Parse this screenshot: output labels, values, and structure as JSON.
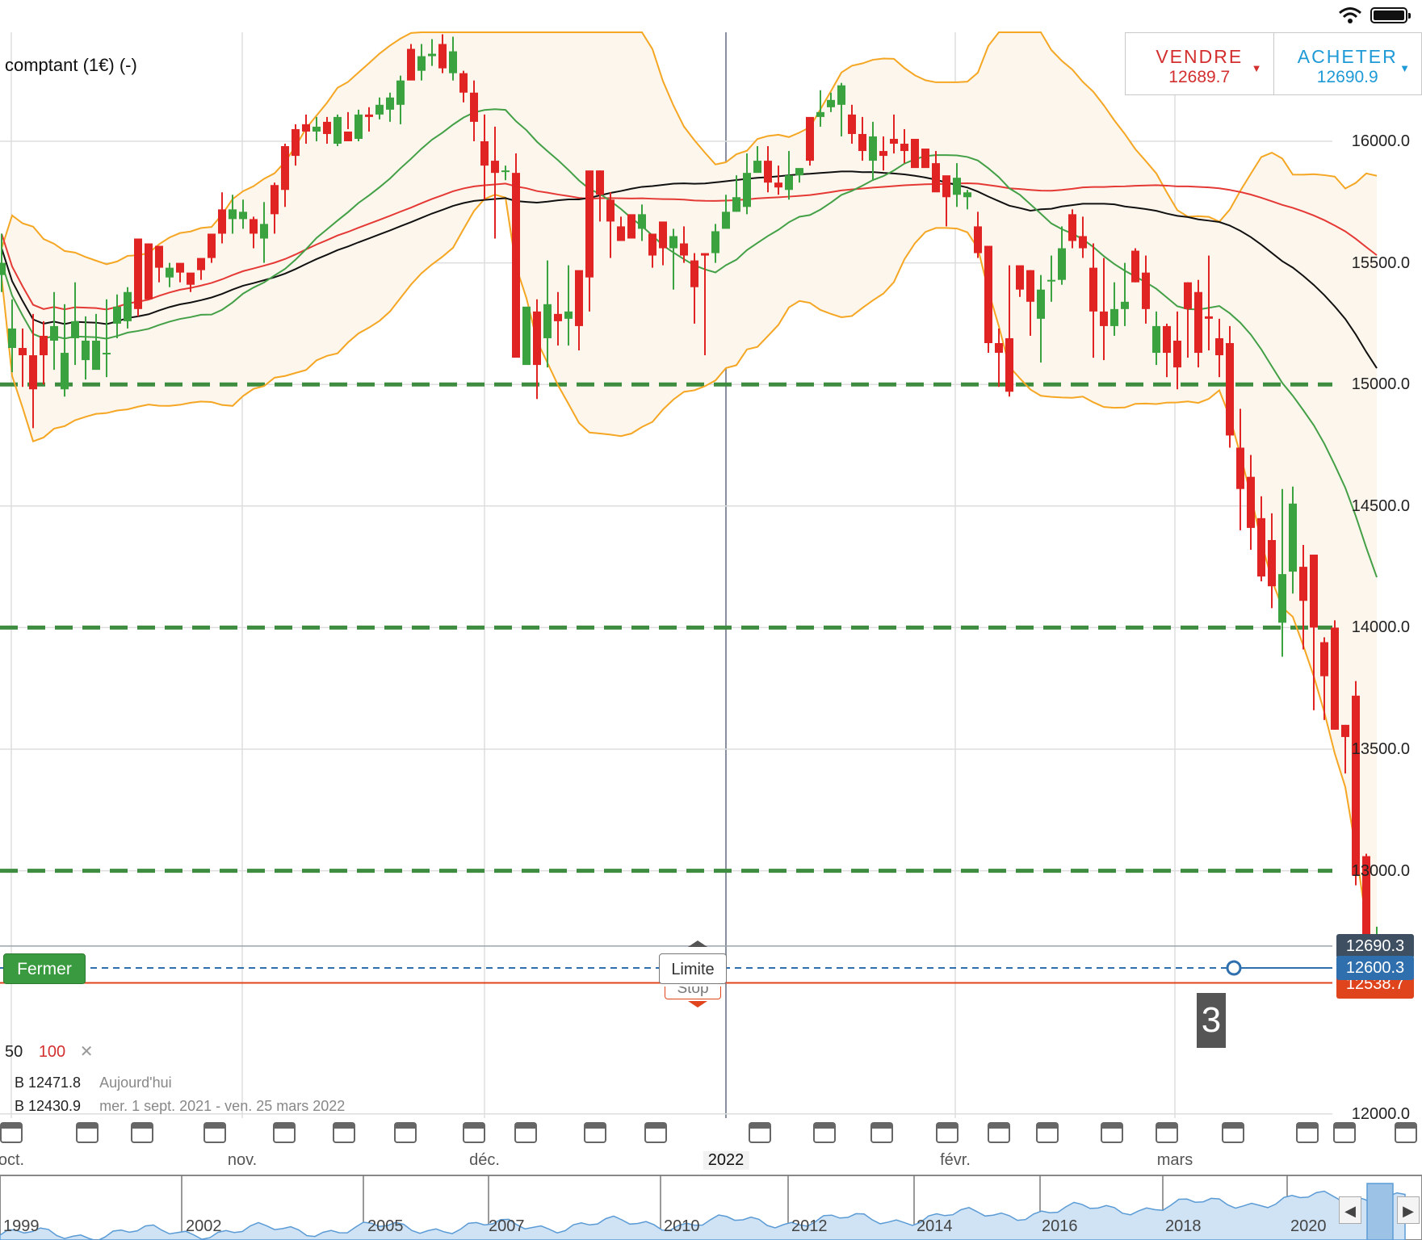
{
  "instrument": {
    "title": "comptant (1€) (-)"
  },
  "trade": {
    "sell_label": "VENDRE",
    "sell_price": "12689.7",
    "buy_label": "ACHETER",
    "buy_price": "12690.9",
    "sell_color": "#d32f2f",
    "buy_color": "#1e9ad6"
  },
  "buttons": {
    "close_label": "Fermer",
    "limit_label": "Limite",
    "stop_label": "Stop"
  },
  "price_tags": {
    "high": "12690.3",
    "current": "12600.3",
    "stop": "12538.7"
  },
  "countdown": "3",
  "indicators": {
    "ma50_label": "50",
    "ma100_label": "100",
    "line1_label": "B 12471.8",
    "line1_desc": "Aujourd'hui",
    "line2_label": "B 12430.9",
    "line2_desc": "mer. 1 sept. 2021 - ven. 25 mars 2022"
  },
  "date_axis": {
    "labels": [
      "oct.",
      "nov.",
      "déc.",
      "2022",
      "févr.",
      "mars"
    ],
    "year_labels": [
      "1999",
      "2002",
      "2005",
      "2007",
      "2010",
      "2012",
      "2014",
      "2016",
      "2018",
      "2020"
    ]
  },
  "icons": [
    "wifi-icon",
    "battery-icon",
    "calendar-icon",
    "chevron-left-icon",
    "chevron-right-icon"
  ],
  "chart_data": {
    "type": "candlestick",
    "title": "",
    "y_axis": {
      "ticks": [
        16000,
        15500,
        15000,
        14500,
        14000,
        13500,
        13000,
        12000
      ],
      "tick_labels": [
        "16000.0",
        "15500.0",
        "15000.0",
        "14500.0",
        "14000.0",
        "13500.0",
        "13000.0",
        "12000.0"
      ],
      "range": [
        12000,
        16570
      ]
    },
    "grid": true,
    "colors": {
      "up": "#3aa23e",
      "down": "#e02424",
      "bollinger": "#f5a623",
      "ma20": "#43a047",
      "ma50": "#111111",
      "ma100": "#e53935",
      "support": "#3d8c40"
    },
    "support_levels": [
      15000,
      14000,
      13000
    ],
    "order_lines": {
      "limit": 12690.3,
      "current": 12600.3,
      "stop": 12538.7
    },
    "candles": [
      [
        15450,
        15500,
        15620,
        15380
      ],
      [
        15150,
        15230,
        15350,
        15050
      ],
      [
        15150,
        15120,
        15230,
        14990
      ],
      [
        15120,
        14980,
        15290,
        14820
      ],
      [
        15200,
        15120,
        15260,
        15000
      ],
      [
        15180,
        15240,
        15380,
        15060
      ],
      [
        14980,
        15130,
        15330,
        14950
      ],
      [
        15190,
        15260,
        15420,
        15080
      ],
      [
        15100,
        15180,
        15280,
        15020
      ],
      [
        15060,
        15180,
        15290,
        15100
      ],
      [
        15130,
        15130,
        15350,
        15030
      ],
      [
        15250,
        15320,
        15370,
        15190
      ],
      [
        15260,
        15380,
        15400,
        15230
      ],
      [
        15600,
        15310,
        15590,
        15280
      ],
      [
        15580,
        15350,
        15410,
        15380
      ],
      [
        15570,
        15480,
        15530,
        15420
      ],
      [
        15440,
        15480,
        15500,
        15400
      ],
      [
        15500,
        15460,
        15480,
        15420
      ],
      [
        15460,
        15410,
        15440,
        15380
      ],
      [
        15520,
        15470,
        15500,
        15430
      ],
      [
        15620,
        15520,
        15600,
        15500
      ],
      [
        15720,
        15620,
        15790,
        15580
      ],
      [
        15680,
        15720,
        15780,
        15620
      ],
      [
        15680,
        15710,
        15760,
        15640
      ],
      [
        15680,
        15620,
        15690,
        15560
      ],
      [
        15600,
        15660,
        15750,
        15500
      ],
      [
        15820,
        15700,
        15830,
        15620
      ],
      [
        15980,
        15800,
        15990,
        15730
      ],
      [
        16050,
        15940,
        16070,
        15900
      ],
      [
        16070,
        16040,
        16110,
        15990
      ],
      [
        16040,
        16060,
        16100,
        16000
      ],
      [
        16080,
        16030,
        16100,
        15990
      ],
      [
        15990,
        16100,
        16110,
        15980
      ],
      [
        16040,
        16000,
        16120,
        16050
      ],
      [
        16010,
        16110,
        16130,
        16000
      ],
      [
        16110,
        16100,
        16140,
        16040
      ],
      [
        16110,
        16150,
        16180,
        16090
      ],
      [
        16130,
        16180,
        16200,
        16080
      ],
      [
        16150,
        16250,
        16270,
        16070
      ],
      [
        16380,
        16250,
        16400,
        16340
      ],
      [
        16290,
        16350,
        16400,
        16250
      ],
      [
        16350,
        16360,
        16420,
        16310
      ],
      [
        16400,
        16300,
        16440,
        16280
      ],
      [
        16280,
        16370,
        16430,
        16250
      ],
      [
        16280,
        16200,
        16290,
        16160
      ],
      [
        16200,
        16080,
        16250,
        16000
      ],
      [
        16000,
        15900,
        16110,
        15760
      ],
      [
        15920,
        15870,
        16060,
        15600
      ],
      [
        15880,
        15880,
        15900,
        15840
      ],
      [
        15870,
        15110,
        15950,
        15180
      ],
      [
        15080,
        15320,
        15310,
        15150
      ],
      [
        15300,
        15080,
        15350,
        14940
      ],
      [
        15190,
        15330,
        15510,
        15070
      ],
      [
        15290,
        15260,
        15380,
        15160
      ],
      [
        15270,
        15300,
        15490,
        15160
      ],
      [
        15470,
        15240,
        15420,
        15140
      ],
      [
        15880,
        15440,
        15480,
        15300
      ],
      [
        15880,
        15780,
        15880,
        15670
      ],
      [
        15760,
        15670,
        15790,
        15520
      ],
      [
        15650,
        15590,
        15690,
        15600
      ],
      [
        15700,
        15600,
        15690,
        15610
      ],
      [
        15640,
        15700,
        15740,
        15590
      ],
      [
        15620,
        15530,
        15570,
        15480
      ],
      [
        15670,
        15560,
        15640,
        15490
      ],
      [
        15560,
        15610,
        15640,
        15390
      ],
      [
        15580,
        15530,
        15650,
        15500
      ],
      [
        15510,
        15400,
        15540,
        15250
      ],
      [
        15540,
        15530,
        15540,
        15120
      ],
      [
        15540,
        15630,
        15660,
        15500
      ],
      [
        15640,
        15710,
        15780,
        15670
      ],
      [
        15710,
        15770,
        15860,
        15710
      ],
      [
        15730,
        15870,
        15950,
        15700
      ],
      [
        15870,
        15920,
        15980,
        15880
      ],
      [
        15920,
        15830,
        15980,
        15790
      ],
      [
        15830,
        15810,
        15900,
        15780
      ],
      [
        15800,
        15860,
        15960,
        15760
      ],
      [
        15860,
        15890,
        15880,
        15830
      ],
      [
        16100,
        15920,
        16050,
        15900
      ],
      [
        16100,
        16120,
        16210,
        16060
      ],
      [
        16140,
        16170,
        16200,
        16120
      ],
      [
        16150,
        16230,
        16240,
        16020
      ],
      [
        16110,
        16030,
        16150,
        15990
      ],
      [
        16030,
        15960,
        16100,
        15920
      ],
      [
        15920,
        16020,
        16080,
        15840
      ],
      [
        15960,
        15940,
        16020,
        15880
      ],
      [
        16010,
        15990,
        16110,
        15950
      ],
      [
        15990,
        15960,
        16050,
        15910
      ],
      [
        16010,
        15890,
        16010,
        15960
      ],
      [
        15970,
        15890,
        15960,
        15920
      ],
      [
        15910,
        15790,
        15960,
        15810
      ],
      [
        15860,
        15770,
        15840,
        15650
      ],
      [
        15780,
        15850,
        15910,
        15730
      ],
      [
        15770,
        15790,
        15800,
        15720
      ],
      [
        15650,
        15540,
        15710,
        15520
      ],
      [
        15570,
        15170,
        15560,
        15130
      ],
      [
        15170,
        15130,
        15230,
        14990
      ],
      [
        15190,
        14970,
        15490,
        14950
      ],
      [
        15490,
        15390,
        15470,
        15360
      ],
      [
        15470,
        15340,
        15470,
        15200
      ],
      [
        15270,
        15390,
        15450,
        15090
      ],
      [
        15430,
        15430,
        15530,
        15340
      ],
      [
        15430,
        15560,
        15650,
        15410
      ],
      [
        15700,
        15590,
        15720,
        15560
      ],
      [
        15610,
        15560,
        15690,
        15520
      ],
      [
        15480,
        15300,
        15580,
        15110
      ],
      [
        15300,
        15240,
        15520,
        15100
      ],
      [
        15240,
        15310,
        15420,
        15200
      ],
      [
        15310,
        15340,
        15500,
        15240
      ],
      [
        15550,
        15420,
        15560,
        15420
      ],
      [
        15460,
        15310,
        15530,
        15250
      ],
      [
        15130,
        15240,
        15300,
        15080
      ],
      [
        15240,
        15130,
        15250,
        15030
      ],
      [
        15180,
        15070,
        15300,
        14980
      ],
      [
        15420,
        15310,
        15420,
        15110
      ],
      [
        15380,
        15130,
        15430,
        15070
      ],
      [
        15280,
        15270,
        15530,
        15140
      ],
      [
        15190,
        15120,
        15270,
        15030
      ],
      [
        15170,
        14790,
        15240,
        14740
      ],
      [
        14740,
        14570,
        14900,
        14400
      ],
      [
        14620,
        14410,
        14710,
        14320
      ],
      [
        14450,
        14210,
        14540,
        14190
      ],
      [
        14360,
        14170,
        14470,
        14080
      ],
      [
        14020,
        14220,
        14570,
        13880
      ],
      [
        14230,
        14510,
        14580,
        14140
      ],
      [
        14250,
        14110,
        14340,
        13910
      ],
      [
        14300,
        14000,
        14300,
        13660
      ],
      [
        13940,
        13800,
        13960,
        13620
      ],
      [
        14000,
        13580,
        14030,
        13580
      ],
      [
        13600,
        13550,
        13600,
        13400
      ],
      [
        13720,
        12980,
        13780,
        12940
      ],
      [
        13060,
        12640,
        13070,
        12590
      ],
      [
        12620,
        12700,
        12770,
        12540
      ]
    ]
  }
}
